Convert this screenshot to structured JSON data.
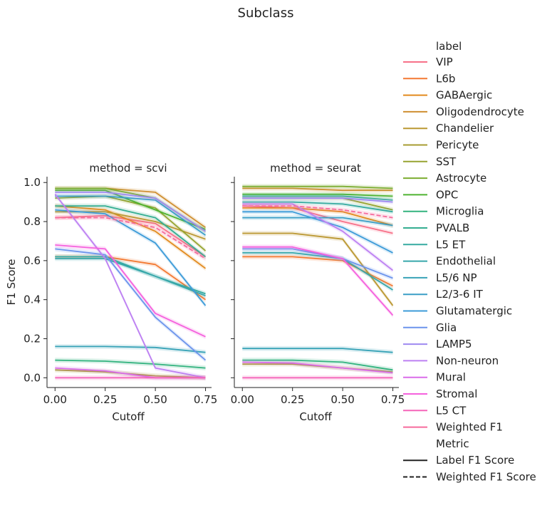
{
  "chart_data": {
    "type": "line",
    "title": "Subclass",
    "x_ticks": [
      "0.00",
      "0.25",
      "0.50",
      "0.75"
    ],
    "y_ticks": [
      "0.0",
      "0.2",
      "0.4",
      "0.6",
      "0.8",
      "1.0"
    ],
    "xlabel": "Cutoff",
    "ylabel": "F1 Score",
    "xlim": [
      -0.04,
      0.78
    ],
    "ylim": [
      -0.05,
      1.03
    ],
    "grid": false,
    "legend_placement": "right",
    "legend": {
      "label_title": "label",
      "metric_title": "Metric",
      "metric_entries": [
        {
          "name": "Label F1 Score",
          "dash": false
        },
        {
          "name": "Weighted F1 Score",
          "dash": true
        }
      ]
    },
    "colors": {
      "VIP": "#f77189",
      "L6b": "#f37932",
      "GABAergic": "#e28a1e",
      "Oligodendrocyte": "#cf8f31",
      "Chandelier": "#bb9832",
      "Pericyte": "#a79c32",
      "SST": "#97a431",
      "Astrocyte": "#7cad31",
      "OPC": "#4fb331",
      "Microglia": "#33b37f",
      "PVALB": "#35ae91",
      "L5 ET": "#36aaa0",
      "Endothelial": "#37a7ab",
      "L5/6 NP": "#38a3b7",
      "L2/3-6 IT": "#3a9ec6",
      "Glutamatergic": "#3c9bd8",
      "Glia": "#6c94ec",
      "LAMP5": "#9e89f1",
      "Non-neuron": "#bd80f2",
      "Mural": "#da6de9",
      "Stromal": "#f561dd",
      "L5 CT": "#f565b9",
      "Weighted F1": "#f66b9c"
    },
    "labels": [
      "VIP",
      "L6b",
      "GABAergic",
      "Oligodendrocyte",
      "Chandelier",
      "Pericyte",
      "SST",
      "Astrocyte",
      "OPC",
      "Microglia",
      "PVALB",
      "L5 ET",
      "Endothelial",
      "L5/6 NP",
      "L2/3-6 IT",
      "Glutamatergic",
      "Glia",
      "LAMP5",
      "Non-neuron",
      "Mural",
      "Stromal",
      "L5 CT",
      "Weighted F1"
    ],
    "x": [
      0.0,
      0.25,
      0.5,
      0.75
    ],
    "panels": [
      {
        "title": "method = scvi",
        "series": [
          {
            "name": "VIP",
            "values": [
              0.82,
              0.83,
              0.79,
              0.62
            ]
          },
          {
            "name": "L6b",
            "values": [
              0.62,
              0.62,
              0.58,
              0.4
            ]
          },
          {
            "name": "GABAergic",
            "values": [
              0.88,
              0.86,
              0.75,
              0.56
            ]
          },
          {
            "name": "Oligodendrocyte",
            "values": [
              0.97,
              0.97,
              0.95,
              0.77
            ]
          },
          {
            "name": "Chandelier",
            "values": [
              0.85,
              0.85,
              0.8,
              0.71
            ]
          },
          {
            "name": "Pericyte",
            "values": [
              0.04,
              0.03,
              0.01,
              0.0
            ]
          },
          {
            "name": "SST",
            "values": [
              0.92,
              0.93,
              0.87,
              0.65
            ]
          },
          {
            "name": "Astrocyte",
            "values": [
              0.97,
              0.97,
              0.92,
              0.75
            ]
          },
          {
            "name": "OPC",
            "values": [
              0.96,
              0.96,
              0.86,
              0.76
            ]
          },
          {
            "name": "Microglia",
            "values": [
              0.09,
              0.085,
              0.07,
              0.05
            ]
          },
          {
            "name": "PVALB",
            "values": [
              0.88,
              0.88,
              0.82,
              0.62
            ]
          },
          {
            "name": "L5 ET",
            "values": [
              0.62,
              0.62,
              0.52,
              0.43
            ]
          },
          {
            "name": "Endothelial",
            "values": [
              0.61,
              0.61,
              0.52,
              0.42
            ]
          },
          {
            "name": "L5/6 NP",
            "values": [
              0.16,
              0.16,
              0.155,
              0.13
            ]
          },
          {
            "name": "L2/3-6 IT",
            "values": [
              0.93,
              0.93,
              0.91,
              0.73
            ]
          },
          {
            "name": "Glutamatergic",
            "values": [
              0.86,
              0.84,
              0.69,
              0.37
            ]
          },
          {
            "name": "Glia",
            "values": [
              0.66,
              0.63,
              0.31,
              0.09
            ]
          },
          {
            "name": "LAMP5",
            "values": [
              0.95,
              0.95,
              0.92,
              0.75
            ]
          },
          {
            "name": "Non-neuron",
            "values": [
              0.94,
              0.61,
              0.05,
              0.0
            ]
          },
          {
            "name": "Mural",
            "values": [
              0.05,
              0.035,
              0.0,
              0.0
            ]
          },
          {
            "name": "Stromal",
            "values": [
              0.68,
              0.66,
              0.33,
              0.21
            ]
          },
          {
            "name": "L5 CT",
            "values": [
              0.0,
              0.0,
              0.0,
              0.0
            ]
          },
          {
            "name": "Weighted F1",
            "values": [
              0.82,
              0.82,
              0.77,
              0.61
            ],
            "dash": true
          }
        ]
      },
      {
        "title": "method = seurat",
        "series": [
          {
            "name": "VIP",
            "values": [
              0.88,
              0.87,
              0.8,
              0.74
            ]
          },
          {
            "name": "L6b",
            "values": [
              0.62,
              0.62,
              0.6,
              0.47
            ]
          },
          {
            "name": "GABAergic",
            "values": [
              0.87,
              0.87,
              0.85,
              0.78
            ]
          },
          {
            "name": "Oligodendrocyte",
            "values": [
              0.97,
              0.97,
              0.96,
              0.96
            ]
          },
          {
            "name": "Chandelier",
            "values": [
              0.74,
              0.74,
              0.71,
              0.37
            ]
          },
          {
            "name": "Pericyte",
            "values": [
              0.07,
              0.07,
              0.05,
              0.03
            ]
          },
          {
            "name": "SST",
            "values": [
              0.92,
              0.92,
              0.92,
              0.86
            ]
          },
          {
            "name": "Astrocyte",
            "values": [
              0.98,
              0.98,
              0.98,
              0.97
            ]
          },
          {
            "name": "OPC",
            "values": [
              0.94,
              0.94,
              0.94,
              0.93
            ]
          },
          {
            "name": "Microglia",
            "values": [
              0.09,
              0.09,
              0.08,
              0.04
            ]
          },
          {
            "name": "PVALB",
            "values": [
              0.93,
              0.93,
              0.93,
              0.91
            ]
          },
          {
            "name": "L5 ET",
            "values": [
              0.9,
              0.9,
              0.89,
              0.85
            ]
          },
          {
            "name": "Endothelial",
            "values": [
              0.64,
              0.64,
              0.61,
              0.45
            ]
          },
          {
            "name": "L5/6 NP",
            "values": [
              0.15,
              0.15,
              0.15,
              0.13
            ]
          },
          {
            "name": "L2/3-6 IT",
            "values": [
              0.82,
              0.82,
              0.82,
              0.78
            ]
          },
          {
            "name": "Glutamatergic",
            "values": [
              0.85,
              0.85,
              0.77,
              0.64
            ]
          },
          {
            "name": "Glia",
            "values": [
              0.66,
              0.66,
              0.61,
              0.51
            ]
          },
          {
            "name": "LAMP5",
            "values": [
              0.92,
              0.92,
              0.92,
              0.9
            ]
          },
          {
            "name": "Non-neuron",
            "values": [
              0.89,
              0.89,
              0.75,
              0.55
            ]
          },
          {
            "name": "Mural",
            "values": [
              0.08,
              0.075,
              0.05,
              0.025
            ]
          },
          {
            "name": "Stromal",
            "values": [
              0.67,
              0.67,
              0.61,
              0.32
            ]
          },
          {
            "name": "L5 CT",
            "values": [
              0.0,
              0.0,
              0.0,
              0.0
            ]
          },
          {
            "name": "Weighted F1",
            "values": [
              0.88,
              0.88,
              0.86,
              0.82
            ],
            "dash": true
          }
        ]
      }
    ]
  }
}
